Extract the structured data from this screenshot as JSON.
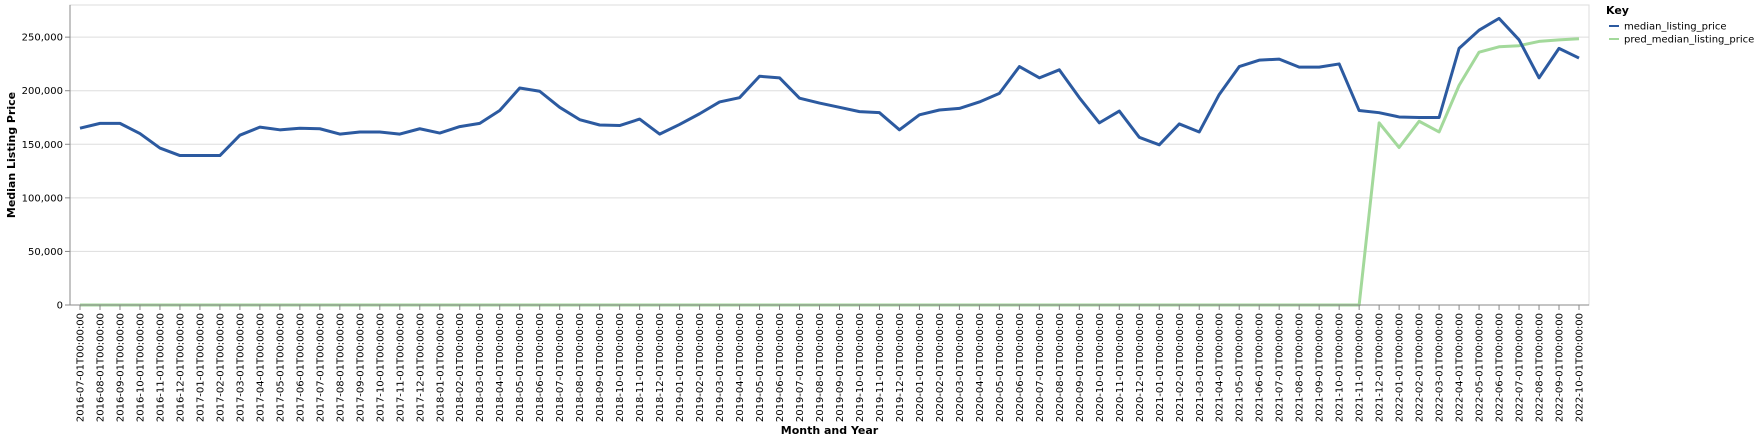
{
  "chart_data": {
    "type": "line",
    "xlabel": "Month and Year",
    "ylabel": "Median Listing Price",
    "ylim": [
      0,
      280000
    ],
    "y_ticks": [
      0,
      50000,
      100000,
      150000,
      200000,
      250000
    ],
    "y_tick_labels": [
      "0",
      "50,000",
      "100,000",
      "150,000",
      "200,000",
      "250,000"
    ],
    "grid": true,
    "legend": {
      "title": "Key",
      "position": "top-right"
    },
    "x": [
      "2016-07-01T00:00:00",
      "2016-08-01T00:00:00",
      "2016-09-01T00:00:00",
      "2016-10-01T00:00:00",
      "2016-11-01T00:00:00",
      "2016-12-01T00:00:00",
      "2017-01-01T00:00:00",
      "2017-02-01T00:00:00",
      "2017-03-01T00:00:00",
      "2017-04-01T00:00:00",
      "2017-05-01T00:00:00",
      "2017-06-01T00:00:00",
      "2017-07-01T00:00:00",
      "2017-08-01T00:00:00",
      "2017-09-01T00:00:00",
      "2017-10-01T00:00:00",
      "2017-11-01T00:00:00",
      "2017-12-01T00:00:00",
      "2018-01-01T00:00:00",
      "2018-02-01T00:00:00",
      "2018-03-01T00:00:00",
      "2018-04-01T00:00:00",
      "2018-05-01T00:00:00",
      "2018-06-01T00:00:00",
      "2018-07-01T00:00:00",
      "2018-08-01T00:00:00",
      "2018-09-01T00:00:00",
      "2018-10-01T00:00:00",
      "2018-11-01T00:00:00",
      "2018-12-01T00:00:00",
      "2019-01-01T00:00:00",
      "2019-02-01T00:00:00",
      "2019-03-01T00:00:00",
      "2019-04-01T00:00:00",
      "2019-05-01T00:00:00",
      "2019-06-01T00:00:00",
      "2019-07-01T00:00:00",
      "2019-08-01T00:00:00",
      "2019-09-01T00:00:00",
      "2019-10-01T00:00:00",
      "2019-11-01T00:00:00",
      "2019-12-01T00:00:00",
      "2020-01-01T00:00:00",
      "2020-02-01T00:00:00",
      "2020-03-01T00:00:00",
      "2020-04-01T00:00:00",
      "2020-05-01T00:00:00",
      "2020-06-01T00:00:00",
      "2020-07-01T00:00:00",
      "2020-08-01T00:00:00",
      "2020-09-01T00:00:00",
      "2020-10-01T00:00:00",
      "2020-11-01T00:00:00",
      "2020-12-01T00:00:00",
      "2021-01-01T00:00:00",
      "2021-02-01T00:00:00",
      "2021-03-01T00:00:00",
      "2021-04-01T00:00:00",
      "2021-05-01T00:00:00",
      "2021-06-01T00:00:00",
      "2021-07-01T00:00:00",
      "2021-08-01T00:00:00",
      "2021-09-01T00:00:00",
      "2021-10-01T00:00:00",
      "2021-11-01T00:00:00",
      "2021-12-01T00:00:00",
      "2022-01-01T00:00:00",
      "2022-02-01T00:00:00",
      "2022-03-01T00:00:00",
      "2022-04-01T00:00:00",
      "2022-05-01T00:00:00",
      "2022-06-01T00:00:00",
      "2022-07-01T00:00:00",
      "2022-08-01T00:00:00",
      "2022-09-01T00:00:00",
      "2022-10-01T00:00:00"
    ],
    "series": [
      {
        "name": "median_listing_price",
        "color": "#2c5aa0",
        "values": [
          165000,
          169500,
          169500,
          160000,
          146500,
          139500,
          139500,
          139500,
          158500,
          166000,
          163500,
          165000,
          164500,
          159500,
          161500,
          161500,
          159500,
          164500,
          160500,
          166500,
          169500,
          181500,
          202500,
          199500,
          184500,
          173000,
          168000,
          167500,
          173500,
          159500,
          168500,
          178500,
          189500,
          193500,
          213500,
          212000,
          193000,
          188500,
          184500,
          180500,
          179500,
          163500,
          177500,
          182000,
          183500,
          189500,
          197500,
          222500,
          212000,
          219500,
          193500,
          170000,
          181000,
          156500,
          149500,
          169000,
          161500,
          196500,
          222500,
          228500,
          229500,
          222000,
          222000,
          225000,
          181500,
          179500,
          175500,
          175000,
          175000,
          239500,
          256500,
          267500,
          247500,
          212000,
          239500,
          230500
        ]
      },
      {
        "name": "pred_median_listing_price",
        "color": "#a3d99b",
        "values": [
          0,
          0,
          0,
          0,
          0,
          0,
          0,
          0,
          0,
          0,
          0,
          0,
          0,
          0,
          0,
          0,
          0,
          0,
          0,
          0,
          0,
          0,
          0,
          0,
          0,
          0,
          0,
          0,
          0,
          0,
          0,
          0,
          0,
          0,
          0,
          0,
          0,
          0,
          0,
          0,
          0,
          0,
          0,
          0,
          0,
          0,
          0,
          0,
          0,
          0,
          0,
          0,
          0,
          0,
          0,
          0,
          0,
          0,
          0,
          0,
          0,
          0,
          0,
          0,
          0,
          170000,
          147000,
          171500,
          161500,
          205000,
          236000,
          241000,
          242000,
          246000,
          247500,
          248500
        ]
      }
    ]
  }
}
